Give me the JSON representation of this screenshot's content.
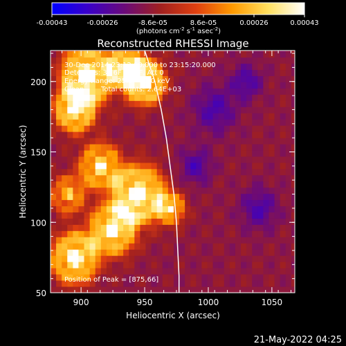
{
  "colorbar": {
    "ticks": [
      "-0.00043",
      "-0.00026",
      "-8.6e-05",
      "8.6e-05",
      "0.00026",
      "0.00043"
    ],
    "unit": "(photons cm",
    "unit_exp1": "-2",
    "unit_mid": " s",
    "unit_exp2": "-1",
    "unit_mid2": " asec",
    "unit_exp3": "-2",
    "unit_end": ")",
    "range": [
      -0.00043,
      0.00043
    ],
    "colors": [
      "#0000ff",
      "#3a00c8",
      "#6a0a7a",
      "#a02020",
      "#e04010",
      "#ff9a00",
      "#ffe060",
      "#ffffff"
    ]
  },
  "chart_data": {
    "type": "heatmap",
    "title": "Reconstructed RHESSI Image",
    "xlabel": "Heliocentric X (arcsec)",
    "ylabel": "Heliocentric Y (arcsec)",
    "xlim": [
      876,
      1068
    ],
    "ylim": [
      50,
      222
    ],
    "xticks": [
      900,
      950,
      1000,
      1050
    ],
    "yticks": [
      50,
      100,
      150,
      200
    ],
    "annotations": {
      "time": "30-Dec-2014 23:12:00.000 to 23:15:20.000",
      "detectors": "Detectors: 3F 6F 7F 9F, Att 0",
      "energy": "Energy Range: 25.0 - 50.0 keV",
      "method": "Clean",
      "counts": "Total counts: 2.64E+03",
      "peak": "Position of Peak = [875,66]"
    },
    "limb": [
      [
        950,
        222
      ],
      [
        958,
        200
      ],
      [
        963,
        180
      ],
      [
        967,
        160
      ],
      [
        970,
        140
      ],
      [
        973,
        120
      ],
      [
        975,
        100
      ],
      [
        976,
        80
      ],
      [
        977,
        62
      ],
      [
        977,
        50
      ]
    ],
    "grid": false
  },
  "footer": {
    "timestamp": "21-May-2022 04:25"
  }
}
